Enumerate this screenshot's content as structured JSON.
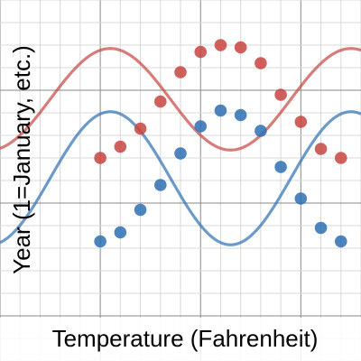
{
  "chart_data": {
    "type": "scatter",
    "xlabel": "Temperature (Fahrenheit)",
    "ylabel": "Year (1=January, etc.)",
    "xlim": [
      -5,
      13
    ],
    "ylim": [
      -20,
      140
    ],
    "grid": true,
    "colors": {
      "red": "#c74440",
      "blue": "#2d70b3"
    },
    "series": [
      {
        "color": "#c74440",
        "x": [
          0,
          1,
          2,
          3,
          4,
          5,
          6,
          7,
          8,
          9,
          10,
          11,
          12
        ],
        "y": [
          70,
          75,
          83,
          95,
          108,
          117,
          120,
          119,
          112,
          98,
          86,
          74,
          70
        ],
        "curve": {
          "a": 22.5,
          "b": 0.5236,
          "h": 6.5,
          "k": 96
        }
      },
      {
        "color": "#2d70b3",
        "x": [
          0,
          1,
          2,
          3,
          4,
          5,
          6,
          7,
          8,
          9,
          10,
          11,
          12
        ],
        "y": [
          33,
          37,
          47,
          58,
          72,
          84,
          91,
          89,
          82,
          66,
          52,
          39,
          33
        ],
        "curve": {
          "a": 29.5,
          "b": 0.5236,
          "h": 6.5,
          "k": 61
        }
      }
    ]
  }
}
